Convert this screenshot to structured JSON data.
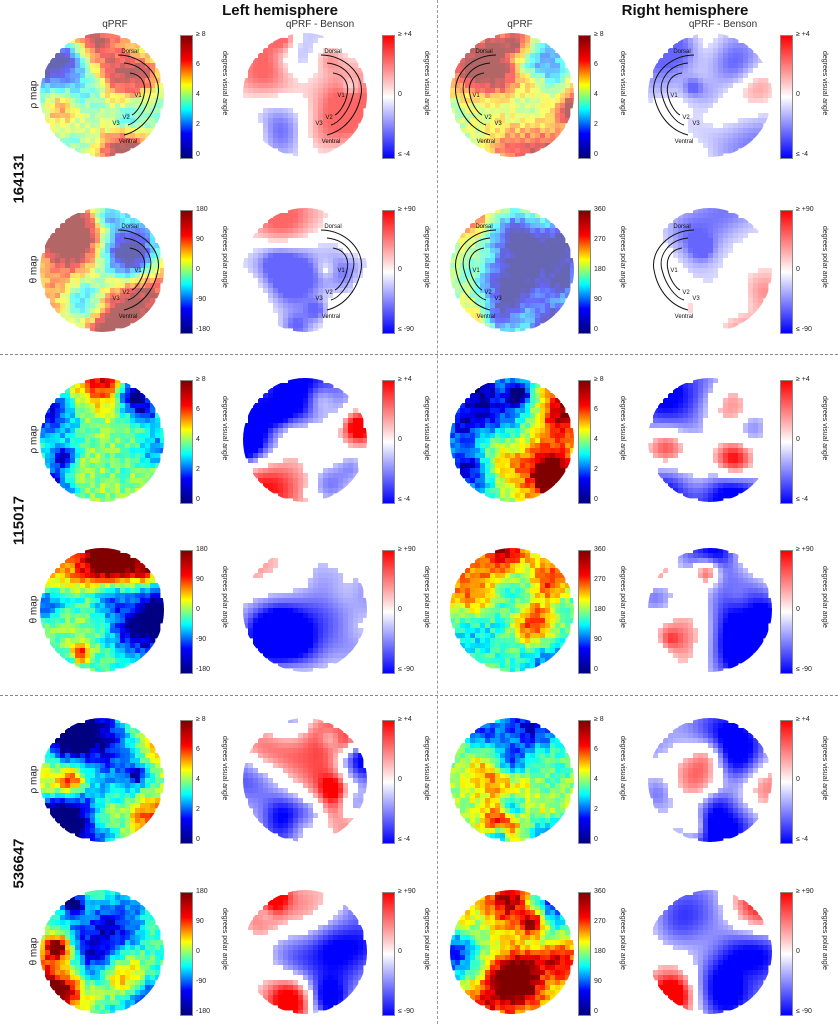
{
  "hemispheres": [
    "Left hemisphere",
    "Right hemisphere"
  ],
  "column_headers": [
    "qPRF",
    "qPRF - Benson",
    "qPRF",
    "qPRF - Benson"
  ],
  "subjects": [
    "164131",
    "115017",
    "536647"
  ],
  "row_labels": [
    "ρ map",
    "θ map"
  ],
  "colorbars": {
    "rho": {
      "ticks": [
        "≥ 8",
        "6",
        "4",
        "2",
        "0"
      ],
      "label": "degrees visual angle"
    },
    "rho_diff": {
      "ticks": [
        "≥ +4",
        "0",
        "≤ -4"
      ],
      "label": "degrees visual angle"
    },
    "theta_left": {
      "ticks": [
        "180",
        "90",
        "0",
        "-90",
        "-180"
      ],
      "label": "degrees polar angle"
    },
    "theta_right": {
      "ticks": [
        "360",
        "270",
        "180",
        "90",
        "0"
      ],
      "label": "degrees polar angle"
    },
    "theta_diff": {
      "ticks": [
        "≥ +90",
        "0",
        "≤ -90"
      ],
      "label": "degrees polar angle"
    }
  },
  "roi_labels": {
    "dorsal": "Dorsal",
    "ventral": "Ventral",
    "v1": "V1",
    "v2": "V2",
    "v3": "V3"
  },
  "colors": {
    "jet": [
      "#00007f",
      "#0000ff",
      "#00ffff",
      "#ffff00",
      "#ff0000",
      "#7f0000"
    ],
    "diverging": [
      "#0000ff",
      "#ffffff",
      "#ff0000"
    ],
    "muted_tint": "#ffffff"
  }
}
